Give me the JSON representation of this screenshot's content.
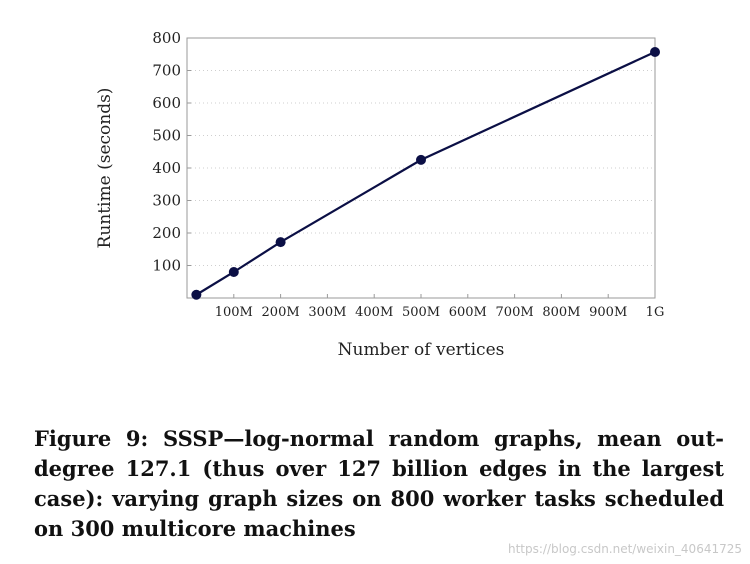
{
  "chart_data": {
    "type": "line",
    "xlabel": "Number of vertices",
    "ylabel": "Runtime (seconds)",
    "xlim": [
      0,
      1000000000
    ],
    "ylim": [
      0,
      800
    ],
    "x_ticks": [
      {
        "value": 100000000,
        "label": "100M"
      },
      {
        "value": 200000000,
        "label": "200M"
      },
      {
        "value": 300000000,
        "label": "300M"
      },
      {
        "value": 400000000,
        "label": "400M"
      },
      {
        "value": 500000000,
        "label": "500M"
      },
      {
        "value": 600000000,
        "label": "600M"
      },
      {
        "value": 700000000,
        "label": "700M"
      },
      {
        "value": 800000000,
        "label": "800M"
      },
      {
        "value": 900000000,
        "label": "900M"
      },
      {
        "value": 1000000000,
        "label": "1G"
      }
    ],
    "y_ticks": [
      100,
      200,
      300,
      400,
      500,
      600,
      700,
      800
    ],
    "grid": "horizontal dotted",
    "series": [
      {
        "color": "#0b0f45",
        "x": [
          20000000,
          100000000,
          200000000,
          500000000,
          1000000000
        ],
        "y": [
          10,
          80,
          172,
          425,
          757
        ]
      }
    ]
  },
  "caption": "Figure 9: SSSP—log-normal random graphs, mean out-degree 127.1 (thus over 127 billion edges in the largest case): varying graph sizes on 800 worker tasks scheduled on 300 multicore machines",
  "watermark": "https://blog.csdn.net/weixin_40641725"
}
